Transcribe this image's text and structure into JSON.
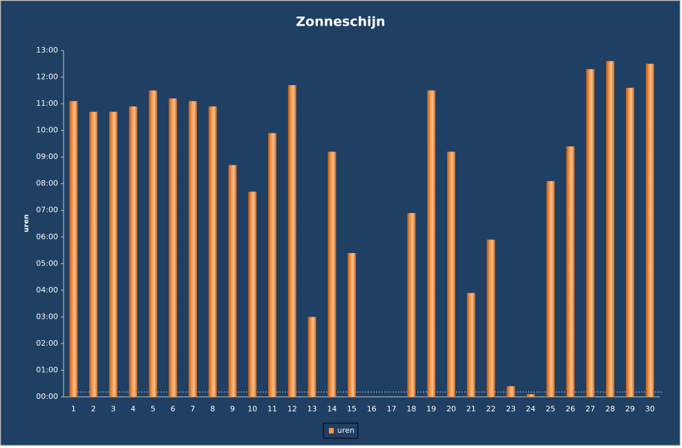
{
  "chart_data": {
    "type": "bar",
    "title": "Zonneschijn",
    "y_label": "uren",
    "categories": [
      "1",
      "2",
      "3",
      "4",
      "5",
      "6",
      "7",
      "8",
      "9",
      "10",
      "11",
      "12",
      "13",
      "14",
      "15",
      "16",
      "17",
      "18",
      "19",
      "20",
      "21",
      "22",
      "23",
      "24",
      "25",
      "26",
      "27",
      "28",
      "29",
      "30"
    ],
    "series": [
      {
        "name": "uren",
        "color": "#f79646",
        "values": [
          11.1,
          10.7,
          10.7,
          10.9,
          11.5,
          11.2,
          11.1,
          10.9,
          8.7,
          7.7,
          9.9,
          11.7,
          3.0,
          9.2,
          5.4,
          0,
          0,
          6.9,
          11.5,
          9.2,
          3.9,
          5.9,
          0.4,
          0.1,
          8.1,
          9.4,
          12.3,
          12.6,
          11.6,
          12.5
        ]
      }
    ],
    "ylim": [
      0,
      13
    ],
    "yticks": [
      {
        "value": 0,
        "label": "00:00"
      },
      {
        "value": 1,
        "label": "01:00"
      },
      {
        "value": 2,
        "label": "02:00"
      },
      {
        "value": 3,
        "label": "03:00"
      },
      {
        "value": 4,
        "label": "04:00"
      },
      {
        "value": 5,
        "label": "05:00"
      },
      {
        "value": 6,
        "label": "06:00"
      },
      {
        "value": 7,
        "label": "07:00"
      },
      {
        "value": 8,
        "label": "08:00"
      },
      {
        "value": 9,
        "label": "09:00"
      },
      {
        "value": 10,
        "label": "10:00"
      },
      {
        "value": 11,
        "label": "11:00"
      },
      {
        "value": 12,
        "label": "12:00"
      },
      {
        "value": 13,
        "label": "13:00"
      }
    ],
    "grid": false,
    "legend": "bottom"
  }
}
